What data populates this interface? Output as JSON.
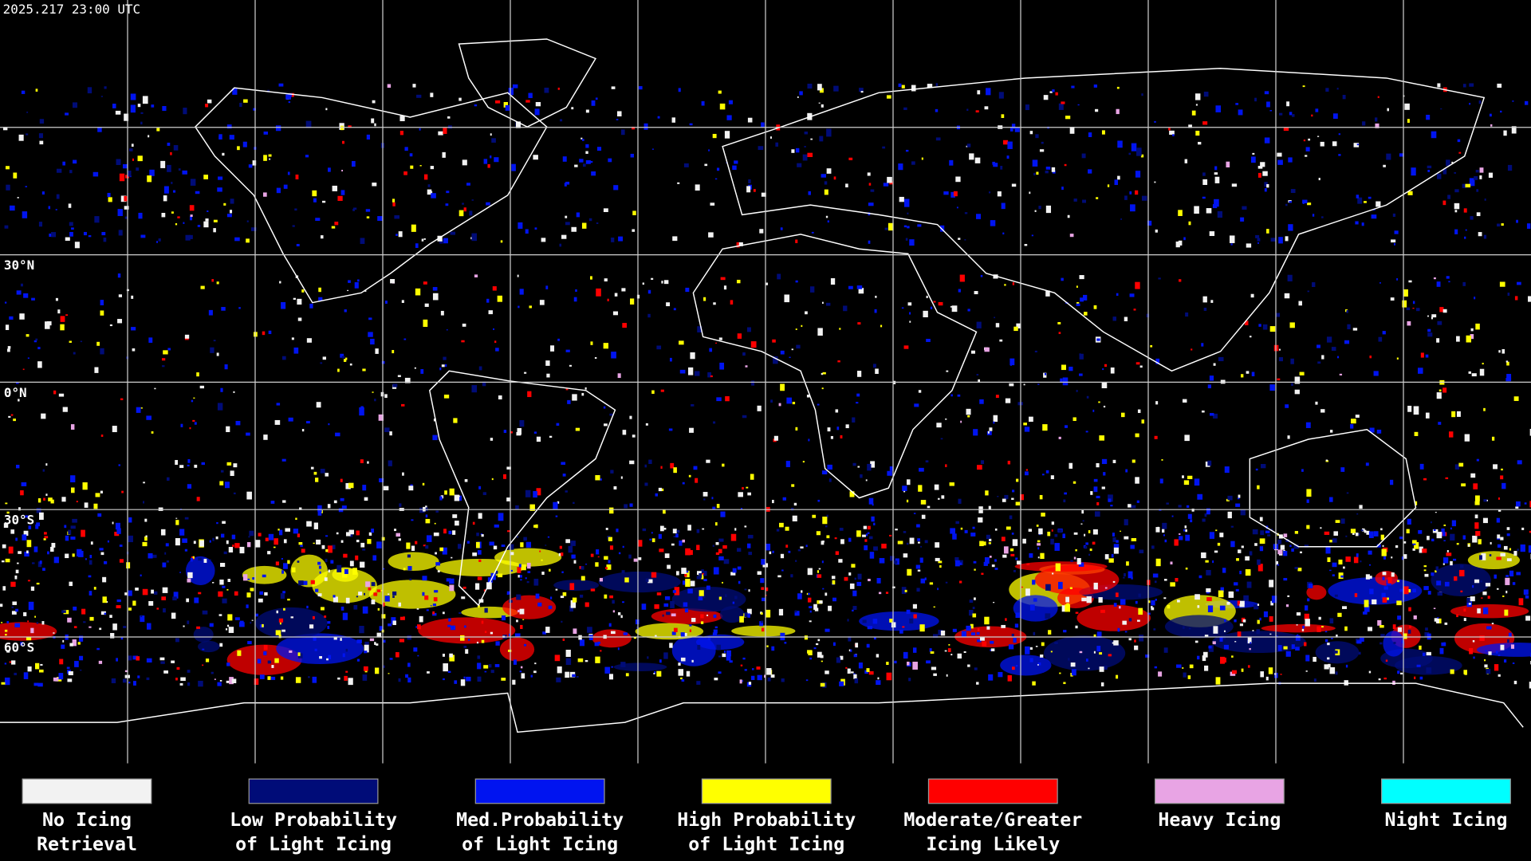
{
  "header": {
    "timestamp": "2025.217 23:00 UTC"
  },
  "map": {
    "lat_labels": [
      "30°N",
      "0°N",
      "30°S",
      "60°S"
    ]
  },
  "legend": {
    "items": [
      {
        "lines": [
          "No Icing",
          "Retrieval"
        ],
        "color": "#f2f2f2"
      },
      {
        "lines": [
          "Low Probability",
          "of Light Icing"
        ],
        "color": "#000c78"
      },
      {
        "lines": [
          "Med.Probability",
          "of Light Icing"
        ],
        "color": "#0014f0"
      },
      {
        "lines": [
          "High Probability",
          "of Light Icing"
        ],
        "color": "#ffff00"
      },
      {
        "lines": [
          "Moderate/Greater",
          "Icing Likely"
        ],
        "color": "#ff0000"
      },
      {
        "lines": [
          "Heavy Icing"
        ],
        "color": "#e8a4e4"
      },
      {
        "lines": [
          "Night Icing"
        ],
        "color": "#00ffff"
      }
    ]
  }
}
